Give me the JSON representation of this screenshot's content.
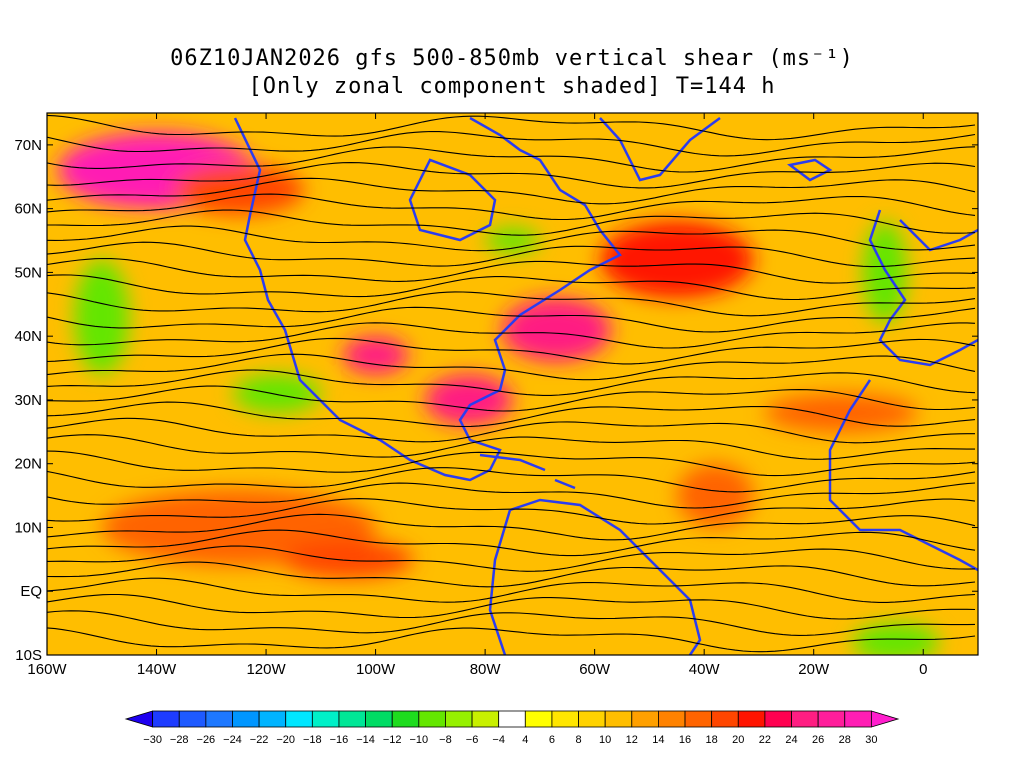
{
  "title": {
    "line1": "06Z10JAN2026 gfs 500-850mb vertical shear (ms⁻¹)",
    "line2": "[Only zonal component shaded] T=144 h"
  },
  "map": {
    "lon_range": [
      -160,
      10
    ],
    "lat_range": [
      -10,
      75
    ],
    "lat_ticks": [
      {
        "value": 70,
        "label": "70N"
      },
      {
        "value": 60,
        "label": "60N"
      },
      {
        "value": 50,
        "label": "50N"
      },
      {
        "value": 40,
        "label": "40N"
      },
      {
        "value": 30,
        "label": "30N"
      },
      {
        "value": 20,
        "label": "20N"
      },
      {
        "value": 10,
        "label": "10N"
      },
      {
        "value": 0,
        "label": "EQ"
      },
      {
        "value": -10,
        "label": "10S"
      }
    ],
    "lon_ticks": [
      {
        "value": -160,
        "label": "160W"
      },
      {
        "value": -140,
        "label": "140W"
      },
      {
        "value": -120,
        "label": "120W"
      },
      {
        "value": -100,
        "label": "100W"
      },
      {
        "value": -80,
        "label": "80W"
      },
      {
        "value": -60,
        "label": "60W"
      },
      {
        "value": -40,
        "label": "40W"
      },
      {
        "value": -20,
        "label": "20W"
      },
      {
        "value": 0,
        "label": "0"
      }
    ],
    "coastline_color": "#2b3cf0",
    "streamline_color": "#000000"
  },
  "colorbar": {
    "levels": [
      -30,
      -28,
      -26,
      -24,
      -22,
      -20,
      -18,
      -16,
      -14,
      -12,
      -10,
      -8,
      -6,
      -4,
      4,
      6,
      8,
      10,
      12,
      14,
      16,
      18,
      20,
      22,
      24,
      26,
      28,
      30
    ],
    "colors": [
      "#1e00f0",
      "#1e3cff",
      "#1e5aff",
      "#1e78ff",
      "#0096ff",
      "#00b4ff",
      "#00e6ff",
      "#00f0c8",
      "#00e696",
      "#00dc64",
      "#1edc1e",
      "#64e600",
      "#96f000",
      "#c8f000",
      "#ffffff",
      "#ffff00",
      "#ffe600",
      "#ffd200",
      "#ffbe00",
      "#ffa000",
      "#ff8200",
      "#ff6400",
      "#ff4600",
      "#ff1400",
      "#ff0050",
      "#ff1e82",
      "#ff1e9b",
      "#ff1eb4",
      "#ff1ecd"
    ]
  },
  "shear_regions": [
    {
      "lon": -140,
      "lat": 66,
      "rx": 18,
      "ry": 6,
      "color": "#ff1eb4"
    },
    {
      "lon": -125,
      "lat": 63,
      "rx": 12,
      "ry": 4,
      "color": "#ff4600"
    },
    {
      "lon": -150,
      "lat": 43,
      "rx": 5,
      "ry": 9,
      "color": "#64e600"
    },
    {
      "lon": -118,
      "lat": 31,
      "rx": 8,
      "ry": 3,
      "color": "#64e600"
    },
    {
      "lon": -45,
      "lat": 52,
      "rx": 14,
      "ry": 6,
      "color": "#ff1400"
    },
    {
      "lon": -67,
      "lat": 41,
      "rx": 10,
      "ry": 5,
      "color": "#ff1e82"
    },
    {
      "lon": -83,
      "lat": 30,
      "rx": 8,
      "ry": 4,
      "color": "#ff1e82"
    },
    {
      "lon": -100,
      "lat": 37,
      "rx": 6,
      "ry": 3,
      "color": "#ff1e82"
    },
    {
      "lon": -125,
      "lat": 10,
      "rx": 25,
      "ry": 6,
      "color": "#ff6400"
    },
    {
      "lon": -105,
      "lat": 5,
      "rx": 12,
      "ry": 3,
      "color": "#ff4600"
    },
    {
      "lon": -38,
      "lat": 15,
      "rx": 7,
      "ry": 5,
      "color": "#ff6400"
    },
    {
      "lon": -15,
      "lat": 28,
      "rx": 14,
      "ry": 3,
      "color": "#ff6400"
    },
    {
      "lon": -7,
      "lat": 50,
      "rx": 4,
      "ry": 8,
      "color": "#64e600"
    },
    {
      "lon": -5,
      "lat": -8,
      "rx": 8,
      "ry": 3,
      "color": "#64e600"
    },
    {
      "lon": -75,
      "lat": 55,
      "rx": 5,
      "ry": 2,
      "color": "#64e600"
    }
  ]
}
